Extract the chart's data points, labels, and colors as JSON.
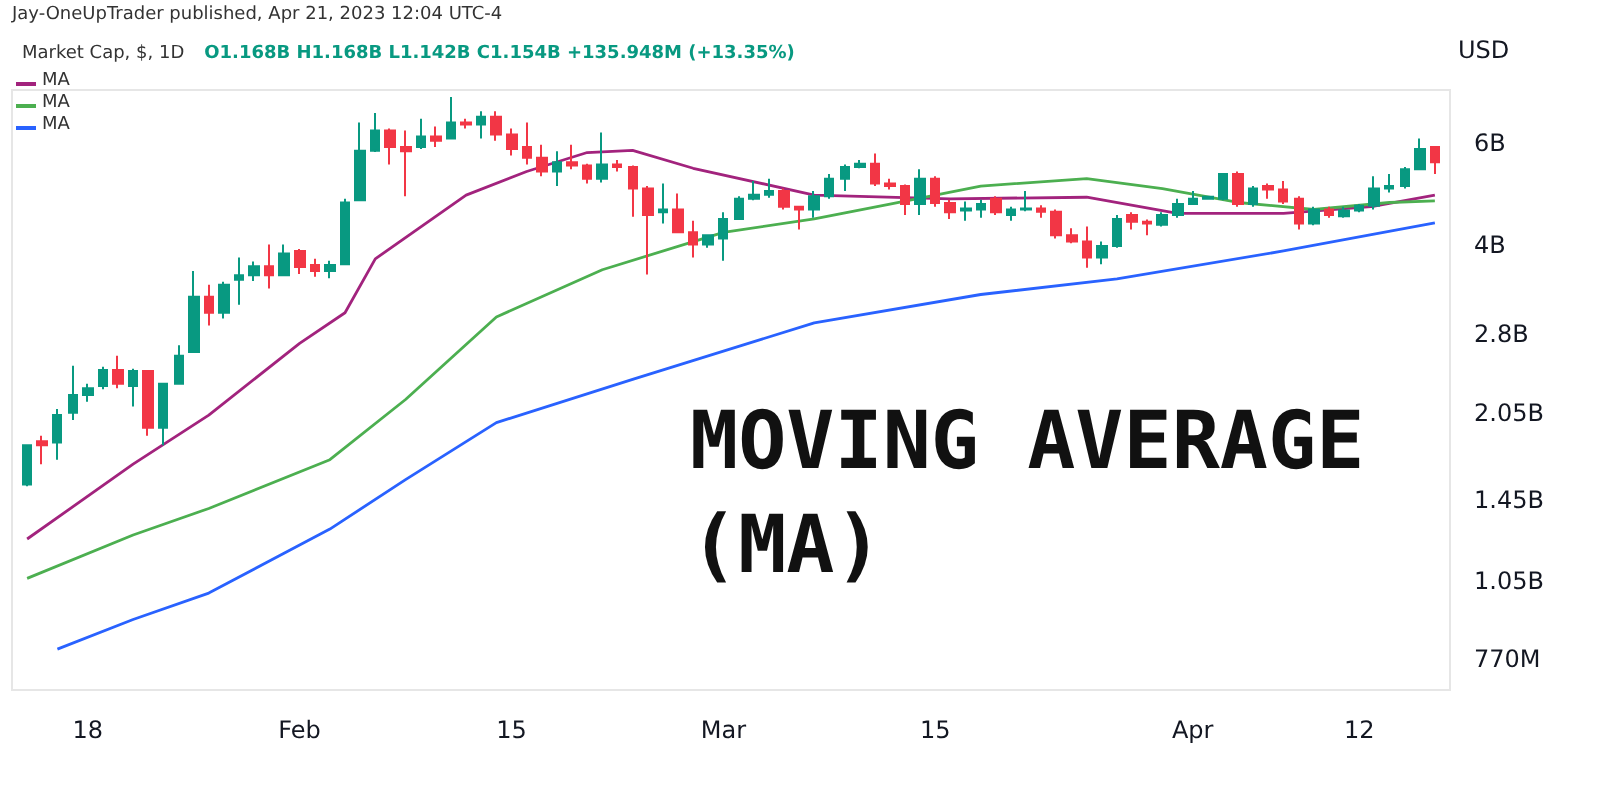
{
  "chart_data": {
    "type": "candlestick",
    "title": "Market Cap, $, 1D",
    "subtitle": "O1.168B H1.168B L1.142B C1.154B +135.948M (+13.35%)",
    "ylabel": "USD",
    "annotations": [
      "Jay-OneUpTrader published, Apr 21, 2023 12:04 UTC-4",
      "MOVING AVERAGE (MA)"
    ],
    "x": [
      "--01-14",
      "--01-15",
      "--01-16",
      "--01-17",
      "--01-18",
      "--01-19",
      "--01-20",
      "--01-21",
      "--01-22",
      "--01-23",
      "--01-24",
      "--01-25",
      "--01-26",
      "--01-27",
      "--01-28",
      "--01-29",
      "--01-30",
      "--01-31",
      "--02-01",
      "--02-02",
      "--02-03",
      "--02-04",
      "--02-05",
      "--02-06",
      "--02-07",
      "--02-08",
      "--02-09",
      "--02-10",
      "--02-11",
      "--02-12",
      "--02-13",
      "--02-14",
      "--02-15",
      "--02-16",
      "--02-17",
      "--02-18",
      "--02-19",
      "--02-20",
      "--02-21",
      "--02-22",
      "--02-23",
      "--02-24",
      "--02-25",
      "--02-26",
      "--02-27",
      "--02-28",
      "--03-01",
      "--03-02",
      "--03-03",
      "--03-04",
      "--03-05",
      "--03-06",
      "--03-07",
      "--03-08",
      "--03-09",
      "--03-10",
      "--03-11",
      "--03-12",
      "--03-13",
      "--03-14",
      "--03-15",
      "--03-16",
      "--03-17",
      "--03-18",
      "--03-19",
      "--03-20",
      "--03-21",
      "--03-22",
      "--03-23",
      "--03-24",
      "--03-25",
      "--03-26",
      "--03-27",
      "--03-28",
      "--03-29",
      "--03-30",
      "--03-31",
      "--04-01",
      "--04-02",
      "--04-03",
      "--04-04",
      "--04-05",
      "--04-06",
      "--04-07",
      "--04-08",
      "--04-09",
      "--04-10",
      "--04-11",
      "--04-12",
      "--04-13",
      "--04-14",
      "--04-15",
      "--04-16",
      "--04-17"
    ],
    "ohlc": [
      [
        1540000000.0,
        1800000000.0,
        1530000000.0,
        1800000000.0
      ],
      [
        1830000000.0,
        1870000000.0,
        1670000000.0,
        1800000000.0
      ],
      [
        1820000000.0,
        2080000000.0,
        1700000000.0,
        2030000000.0
      ],
      [
        2050000000.0,
        2470000000.0,
        1990000000.0,
        2200000000.0
      ],
      [
        2200000000.0,
        2300000000.0,
        2140000000.0,
        2260000000.0
      ],
      [
        2280000000.0,
        2460000000.0,
        2250000000.0,
        2430000000.0
      ],
      [
        2430000000.0,
        2570000000.0,
        2260000000.0,
        2300000000.0
      ],
      [
        2280000000.0,
        2440000000.0,
        2100000000.0,
        2420000000.0
      ],
      [
        2420000000.0,
        2420000000.0,
        1870000000.0,
        1930000000.0
      ],
      [
        1930000000.0,
        2300000000.0,
        1800000000.0,
        2300000000.0
      ],
      [
        2300000000.0,
        2680000000.0,
        2300000000.0,
        2570000000.0
      ],
      [
        2610000000.0,
        3600000000.0,
        2600000000.0,
        3250000000.0
      ],
      [
        3250000000.0,
        3410000000.0,
        2900000000.0,
        3050000000.0
      ],
      [
        3050000000.0,
        3450000000.0,
        2980000000.0,
        3410000000.0
      ],
      [
        3480000000.0,
        3800000000.0,
        3150000000.0,
        3540000000.0
      ],
      [
        3540000000.0,
        3740000000.0,
        3460000000.0,
        3670000000.0
      ],
      [
        3670000000.0,
        4000000000.0,
        3360000000.0,
        3540000000.0
      ],
      [
        3540000000.0,
        4000000000.0,
        3540000000.0,
        3860000000.0
      ],
      [
        3900000000.0,
        3930000000.0,
        3560000000.0,
        3660000000.0
      ],
      [
        3690000000.0,
        3780000000.0,
        3520000000.0,
        3600000000.0
      ],
      [
        3600000000.0,
        3750000000.0,
        3500000000.0,
        3690000000.0
      ],
      [
        3700000000.0,
        4800000000.0,
        3700000000.0,
        4730000000.0
      ],
      [
        4770000000.0,
        6500000000.0,
        4770000000.0,
        5810000000.0
      ],
      [
        5810000000.0,
        6750000000.0,
        5780000000.0,
        6300000000.0
      ],
      [
        6300000000.0,
        6350000000.0,
        5500000000.0,
        5900000000.0
      ],
      [
        5900000000.0,
        6300000000.0,
        4850000000.0,
        5800000000.0
      ],
      [
        5900000000.0,
        6600000000.0,
        5850000000.0,
        6150000000.0
      ],
      [
        6150000000.0,
        6400000000.0,
        5900000000.0,
        6050000000.0
      ],
      [
        6100000000.0,
        7200000000.0,
        6100000000.0,
        6500000000.0
      ],
      [
        6500000000.0,
        6600000000.0,
        6350000000.0,
        6450000000.0
      ],
      [
        6450000000.0,
        6800000000.0,
        6100000000.0,
        6650000000.0
      ],
      [
        6650000000.0,
        6800000000.0,
        6050000000.0,
        6200000000.0
      ],
      [
        6200000000.0,
        6350000000.0,
        5700000000.0,
        5850000000.0
      ],
      [
        5900000000.0,
        6500000000.0,
        5500000000.0,
        5650000000.0
      ],
      [
        5650000000.0,
        5950000000.0,
        5250000000.0,
        5350000000.0
      ],
      [
        5350000000.0,
        5800000000.0,
        5050000000.0,
        5550000000.0
      ],
      [
        5550000000.0,
        5950000000.0,
        5400000000.0,
        5480000000.0
      ],
      [
        5480000000.0,
        5520000000.0,
        5100000000.0,
        5200000000.0
      ],
      [
        5200000000.0,
        6250000000.0,
        5120000000.0,
        5500000000.0
      ],
      [
        5500000000.0,
        5600000000.0,
        5350000000.0,
        5450000000.0
      ],
      [
        5450000000.0,
        5480000000.0,
        4470000000.0,
        5000000000.0
      ],
      [
        5000000000.0,
        5050000000.0,
        3550000000.0,
        4500000000.0
      ],
      [
        4550000000.0,
        5100000000.0,
        4350000000.0,
        4600000000.0
      ],
      [
        4600000000.0,
        4900000000.0,
        4200000000.0,
        4200000000.0
      ],
      [
        4200000000.0,
        4400000000.0,
        3800000000.0,
        4000000000.0
      ],
      [
        4000000000.0,
        4150000000.0,
        3950000000.0,
        4150000000.0
      ],
      [
        4100000000.0,
        4550000000.0,
        3750000000.0,
        4430000000.0
      ],
      [
        4430000000.0,
        4850000000.0,
        4430000000.0,
        4800000000.0
      ],
      [
        4800000000.0,
        5150000000.0,
        4770000000.0,
        4880000000.0
      ],
      [
        4880000000.0,
        5200000000.0,
        4820000000.0,
        4950000000.0
      ],
      [
        4950000000.0,
        5000000000.0,
        4600000000.0,
        4650000000.0
      ],
      [
        4650000000.0,
        4670000000.0,
        4250000000.0,
        4600000000.0
      ],
      [
        4600000000.0,
        4950000000.0,
        4450000000.0,
        4850000000.0
      ],
      [
        4850000000.0,
        5300000000.0,
        4800000000.0,
        5200000000.0
      ],
      [
        5200000000.0,
        5500000000.0,
        4950000000.0,
        5450000000.0
      ],
      [
        5450000000.0,
        5600000000.0,
        5420000000.0,
        5520000000.0
      ],
      [
        5520000000.0,
        5750000000.0,
        5050000000.0,
        5100000000.0
      ],
      [
        5100000000.0,
        5200000000.0,
        4980000000.0,
        5050000000.0
      ],
      [
        5050000000.0,
        5080000000.0,
        4500000000.0,
        4700000000.0
      ],
      [
        4700000000.0,
        5400000000.0,
        4500000000.0,
        5200000000.0
      ],
      [
        5200000000.0,
        5250000000.0,
        4650000000.0,
        4720000000.0
      ],
      [
        4720000000.0,
        4780000000.0,
        4430000000.0,
        4550000000.0
      ],
      [
        4580000000.0,
        4750000000.0,
        4400000000.0,
        4620000000.0
      ],
      [
        4600000000.0,
        4780000000.0,
        4450000000.0,
        4700000000.0
      ],
      [
        4800000000.0,
        4850000000.0,
        4500000000.0,
        4550000000.0
      ],
      [
        4500000000.0,
        4650000000.0,
        4400000000.0,
        4600000000.0
      ],
      [
        4600000000.0,
        4950000000.0,
        4570000000.0,
        4620000000.0
      ],
      [
        4620000000.0,
        4680000000.0,
        4450000000.0,
        4560000000.0
      ],
      [
        4560000000.0,
        4600000000.0,
        4100000000.0,
        4150000000.0
      ],
      [
        4150000000.0,
        4270000000.0,
        4020000000.0,
        4050000000.0
      ],
      [
        4050000000.0,
        4300000000.0,
        3650000000.0,
        3800000000.0
      ],
      [
        3800000000.0,
        4050000000.0,
        3700000000.0,
        3980000000.0
      ],
      [
        3980000000.0,
        4500000000.0,
        3950000000.0,
        4430000000.0
      ],
      [
        4500000000.0,
        4550000000.0,
        4250000000.0,
        4380000000.0
      ],
      [
        4380000000.0,
        4420000000.0,
        4150000000.0,
        4350000000.0
      ],
      [
        4330000000.0,
        4550000000.0,
        4300000000.0,
        4500000000.0
      ],
      [
        4500000000.0,
        4800000000.0,
        4450000000.0,
        4700000000.0
      ],
      [
        4700000000.0,
        4950000000.0,
        4700000000.0,
        4800000000.0
      ],
      [
        4800000000.0,
        4860000000.0,
        4780000000.0,
        4840000000.0
      ],
      [
        4800000000.0,
        5300000000.0,
        4770000000.0,
        5300000000.0
      ],
      [
        5300000000.0,
        5350000000.0,
        4650000000.0,
        4700000000.0
      ],
      [
        4700000000.0,
        5050000000.0,
        4650000000.0,
        5000000000.0
      ],
      [
        5050000000.0,
        5100000000.0,
        4800000000.0,
        4980000000.0
      ],
      [
        4980000000.0,
        5150000000.0,
        4700000000.0,
        4750000000.0
      ],
      [
        4800000000.0,
        4850000000.0,
        4250000000.0,
        4350000000.0
      ],
      [
        4350000000.0,
        4650000000.0,
        4320000000.0,
        4600000000.0
      ],
      [
        4600000000.0,
        4650000000.0,
        4450000000.0,
        4500000000.0
      ],
      [
        4480000000.0,
        4650000000.0,
        4450000000.0,
        4580000000.0
      ],
      [
        4580000000.0,
        4700000000.0,
        4550000000.0,
        4670000000.0
      ],
      [
        4670000000.0,
        5250000000.0,
        4600000000.0,
        5000000000.0
      ],
      [
        5000000000.0,
        5300000000.0,
        4920000000.0,
        5050000000.0
      ],
      [
        5050000000.0,
        5450000000.0,
        5000000000.0,
        5400000000.0
      ],
      [
        5400000000.0,
        6100000000.0,
        5400000000.0,
        5850000000.0
      ],
      [
        5900000000.0,
        5900000000.0,
        5300000000.0,
        5550000000.0
      ]
    ],
    "colors": [
      "#089981",
      "#f23645",
      "#089981",
      "#089981",
      "#089981",
      "#089981",
      "#f23645",
      "#089981",
      "#f23645",
      "#089981",
      "#089981",
      "#089981",
      "#f23645",
      "#089981",
      "#089981",
      "#089981",
      "#f23645",
      "#089981",
      "#f23645",
      "#f23645",
      "#089981",
      "#089981",
      "#089981",
      "#089981",
      "#f23645",
      "#f23645",
      "#089981",
      "#f23645",
      "#089981",
      "#f23645",
      "#089981",
      "#f23645",
      "#f23645",
      "#f23645",
      "#f23645",
      "#089981",
      "#f23645",
      "#f23645",
      "#089981",
      "#f23645",
      "#f23645",
      "#f23645",
      "#089981",
      "#f23645",
      "#f23645",
      "#089981",
      "#089981",
      "#089981",
      "#089981",
      "#089981",
      "#f23645",
      "#f23645",
      "#089981",
      "#089981",
      "#089981",
      "#089981",
      "#f23645",
      "#f23645",
      "#f23645",
      "#089981",
      "#f23645",
      "#f23645",
      "#089981",
      "#089981",
      "#f23645",
      "#089981",
      "#089981",
      "#f23645",
      "#f23645",
      "#f23645",
      "#f23645",
      "#089981",
      "#089981",
      "#f23645",
      "#f23645",
      "#089981",
      "#089981",
      "#089981",
      "#089981",
      "#089981",
      "#f23645",
      "#089981",
      "#f23645",
      "#f23645",
      "#f23645",
      "#089981",
      "#f23645",
      "#089981",
      "#089981",
      "#089981",
      "#089981",
      "#089981",
      "#089981",
      "#f23645"
    ],
    "series": [
      {
        "name": "MA",
        "type": "line",
        "color": "#a2237d",
        "x": [
          "--01-14",
          "--01-21",
          "--01-26",
          "--02-01",
          "--02-04",
          "--02-06",
          "--02-12",
          "--02-16",
          "--02-20",
          "--02-23",
          "--02-27",
          "--03-07",
          "--03-16",
          "--03-25",
          "--03-31",
          "--04-07",
          "--04-13",
          "--04-17"
        ],
        "values": [
          1240000000.0,
          1670000000.0,
          2030000000.0,
          2700000000.0,
          3050000000.0,
          3780000000.0,
          4870000000.0,
          5350000000.0,
          5770000000.0,
          5820000000.0,
          5420000000.0,
          4870000000.0,
          4800000000.0,
          4830000000.0,
          4530000000.0,
          4530000000.0,
          4660000000.0,
          4870000000.0
        ]
      },
      {
        "name": "MA",
        "type": "line",
        "color": "#4caf50",
        "x": [
          "--01-14",
          "--01-21",
          "--01-26",
          "--02-03",
          "--02-08",
          "--02-14",
          "--02-21",
          "--03-01",
          "--03-07",
          "--03-12",
          "--03-18",
          "--03-25",
          "--03-30",
          "--04-04",
          "--04-09",
          "--04-14",
          "--04-17"
        ],
        "values": [
          1060000000.0,
          1260000000.0,
          1400000000.0,
          1700000000.0,
          2160000000.0,
          3000000000.0,
          3620000000.0,
          4200000000.0,
          4430000000.0,
          4700000000.0,
          5050000000.0,
          5200000000.0,
          5000000000.0,
          4730000000.0,
          4600000000.0,
          4730000000.0,
          4760000000.0
        ]
      },
      {
        "name": "MA",
        "type": "line",
        "color": "#2962ff",
        "x": [
          "--01-16",
          "--01-21",
          "--01-26",
          "--02-03",
          "--02-08",
          "--02-14",
          "--02-23",
          "--03-07",
          "--03-18",
          "--03-27",
          "--04-07",
          "--04-17"
        ],
        "values": [
          800000000.0,
          900000000.0,
          1000000000.0,
          1290000000.0,
          1570000000.0,
          1970000000.0,
          2340000000.0,
          2930000000.0,
          3280000000.0,
          3490000000.0,
          3900000000.0,
          4360000000.0
        ]
      }
    ],
    "log": true,
    "ylim": [
      680000000.0,
      7400000000.0
    ],
    "yticks": [
      {
        "value": 770000000.0,
        "label": "770M"
      },
      {
        "value": 1050000000.0,
        "label": "1.05B"
      },
      {
        "value": 1450000000.0,
        "label": "1.45B"
      },
      {
        "value": 2050000000.0,
        "label": "2.05B"
      },
      {
        "value": 2800000000.0,
        "label": "2.8B"
      },
      {
        "value": 4000000000.0,
        "label": "4B"
      },
      {
        "value": 6000000000.0,
        "label": "6B"
      }
    ],
    "xlim": [
      "--01-13",
      "--04-18"
    ],
    "xticks": [
      {
        "value": "--01-18",
        "label": "18"
      },
      {
        "value": "--02-01",
        "label": "Feb"
      },
      {
        "value": "--02-15",
        "label": "15"
      },
      {
        "value": "--03-01",
        "label": "Mar"
      },
      {
        "value": "--03-15",
        "label": "15"
      },
      {
        "value": "--04-01",
        "label": "Apr"
      },
      {
        "value": "--04-12",
        "label": "12"
      }
    ],
    "grid": false,
    "legend": "top left",
    "marker": "none"
  }
}
